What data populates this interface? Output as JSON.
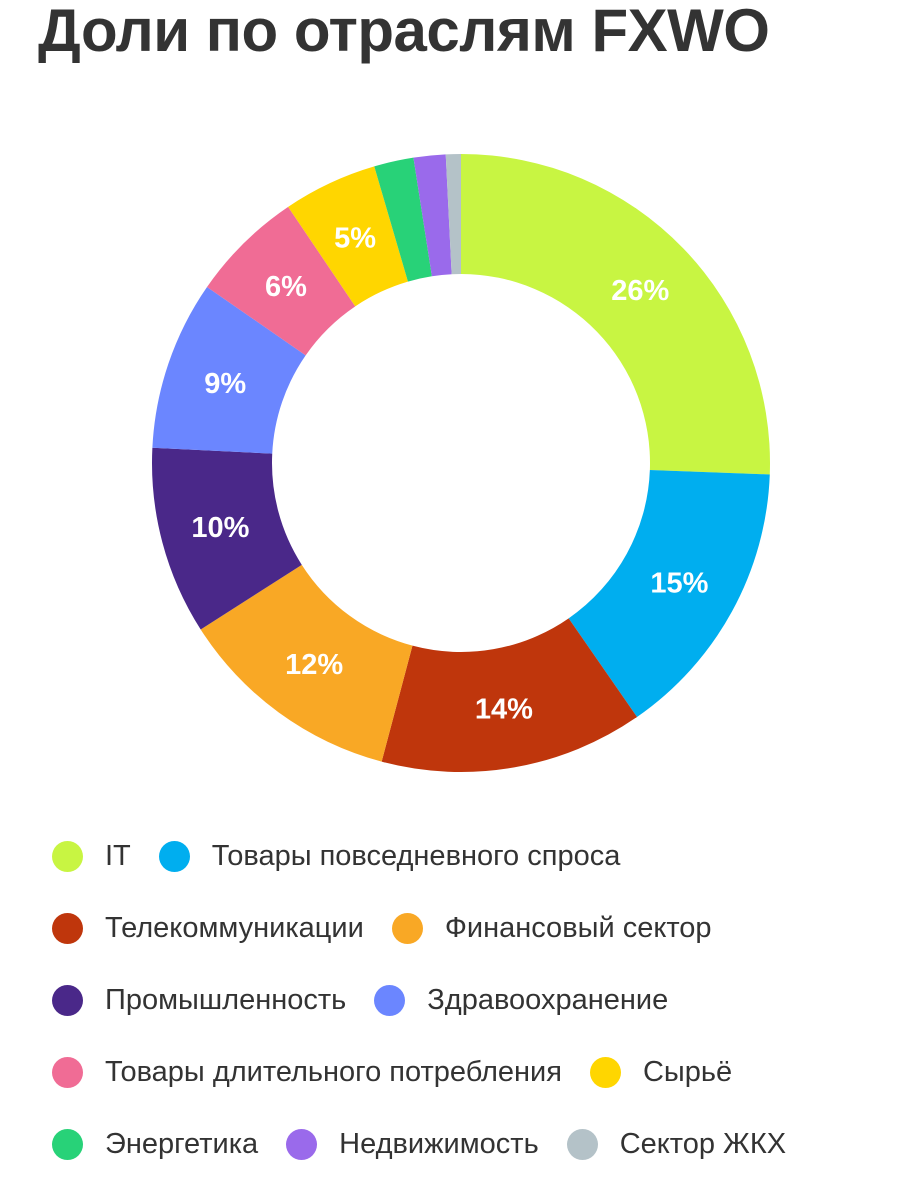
{
  "title": "Доли по отраслям FXWO",
  "chart_data": {
    "type": "pie",
    "subtype": "donut",
    "title": "Доли по отраслям FXWO",
    "start_angle": "12 o'clock, clockwise",
    "categories": [
      "IT",
      "Товары повседневного спроса",
      "Телекоммуникации",
      "Финансовый сектор",
      "Промышленность",
      "Здравоохранение",
      "Товары длительного потребления",
      "Сырьё",
      "Энергетика",
      "Недвижимость",
      "Сектор ЖКХ"
    ],
    "values": [
      26,
      15,
      14,
      12,
      10,
      9,
      6,
      5,
      2.1,
      1.7,
      0.8
    ],
    "labels": [
      "26%",
      "15%",
      "14%",
      "12%",
      "10%",
      "9%",
      "6%",
      "5%",
      "",
      "",
      ""
    ],
    "colors": [
      "#C8F542",
      "#00AEEF",
      "#BF360C",
      "#F9A825",
      "#4A2889",
      "#6B86FF",
      "#F06C95",
      "#FFD600",
      "#28D278",
      "#9A6AEB",
      "#B4C2C8"
    ],
    "legend_position": "bottom",
    "unit": "%"
  },
  "legend": {
    "rows": [
      [
        {
          "label": "IT",
          "color": "#C8F542"
        },
        {
          "label": "Товары повседневного спроса",
          "color": "#00AEEF"
        }
      ],
      [
        {
          "label": "Телекоммуникации",
          "color": "#BF360C"
        },
        {
          "label": "Финансовый сектор",
          "color": "#F9A825"
        }
      ],
      [
        {
          "label": "Промышленность",
          "color": "#4A2889"
        },
        {
          "label": "Здравоохранение",
          "color": "#6B86FF"
        }
      ],
      [
        {
          "label": "Товары длительного потребления",
          "color": "#F06C95"
        },
        {
          "label": "Сырьё",
          "color": "#FFD600"
        }
      ],
      [
        {
          "label": "Энергетика",
          "color": "#28D278"
        },
        {
          "label": "Недвижимость",
          "color": "#9A6AEB"
        },
        {
          "label": "Сектор ЖКХ",
          "color": "#B4C2C8"
        }
      ]
    ]
  }
}
